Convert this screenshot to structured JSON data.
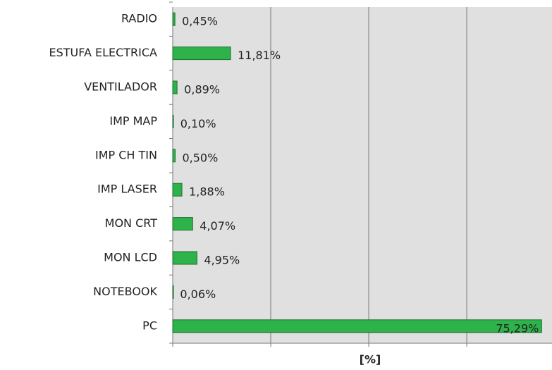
{
  "chart_data": {
    "type": "hbar",
    "categories": [
      "RADIO",
      "ESTUFA ELECTRICA",
      "VENTILADOR",
      "IMP MAP",
      "IMP CH TIN",
      "IMP LASER",
      "MON CRT",
      "MON LCD",
      "NOTEBOOK",
      "PC"
    ],
    "values": [
      0.45,
      11.81,
      0.89,
      0.1,
      0.5,
      1.88,
      4.07,
      4.95,
      0.06,
      75.29
    ],
    "value_labels": [
      "0,45%",
      "11,81%",
      "0,89%",
      "0,10%",
      "0,50%",
      "1,88%",
      "4,07%",
      "4,95%",
      "0,06%",
      "75,29%"
    ],
    "color": "#2db34a",
    "x_label": "[%]",
    "xlim": [
      0,
      77.4
    ],
    "xticks": [
      0,
      20,
      40,
      60
    ],
    "grid": true
  }
}
